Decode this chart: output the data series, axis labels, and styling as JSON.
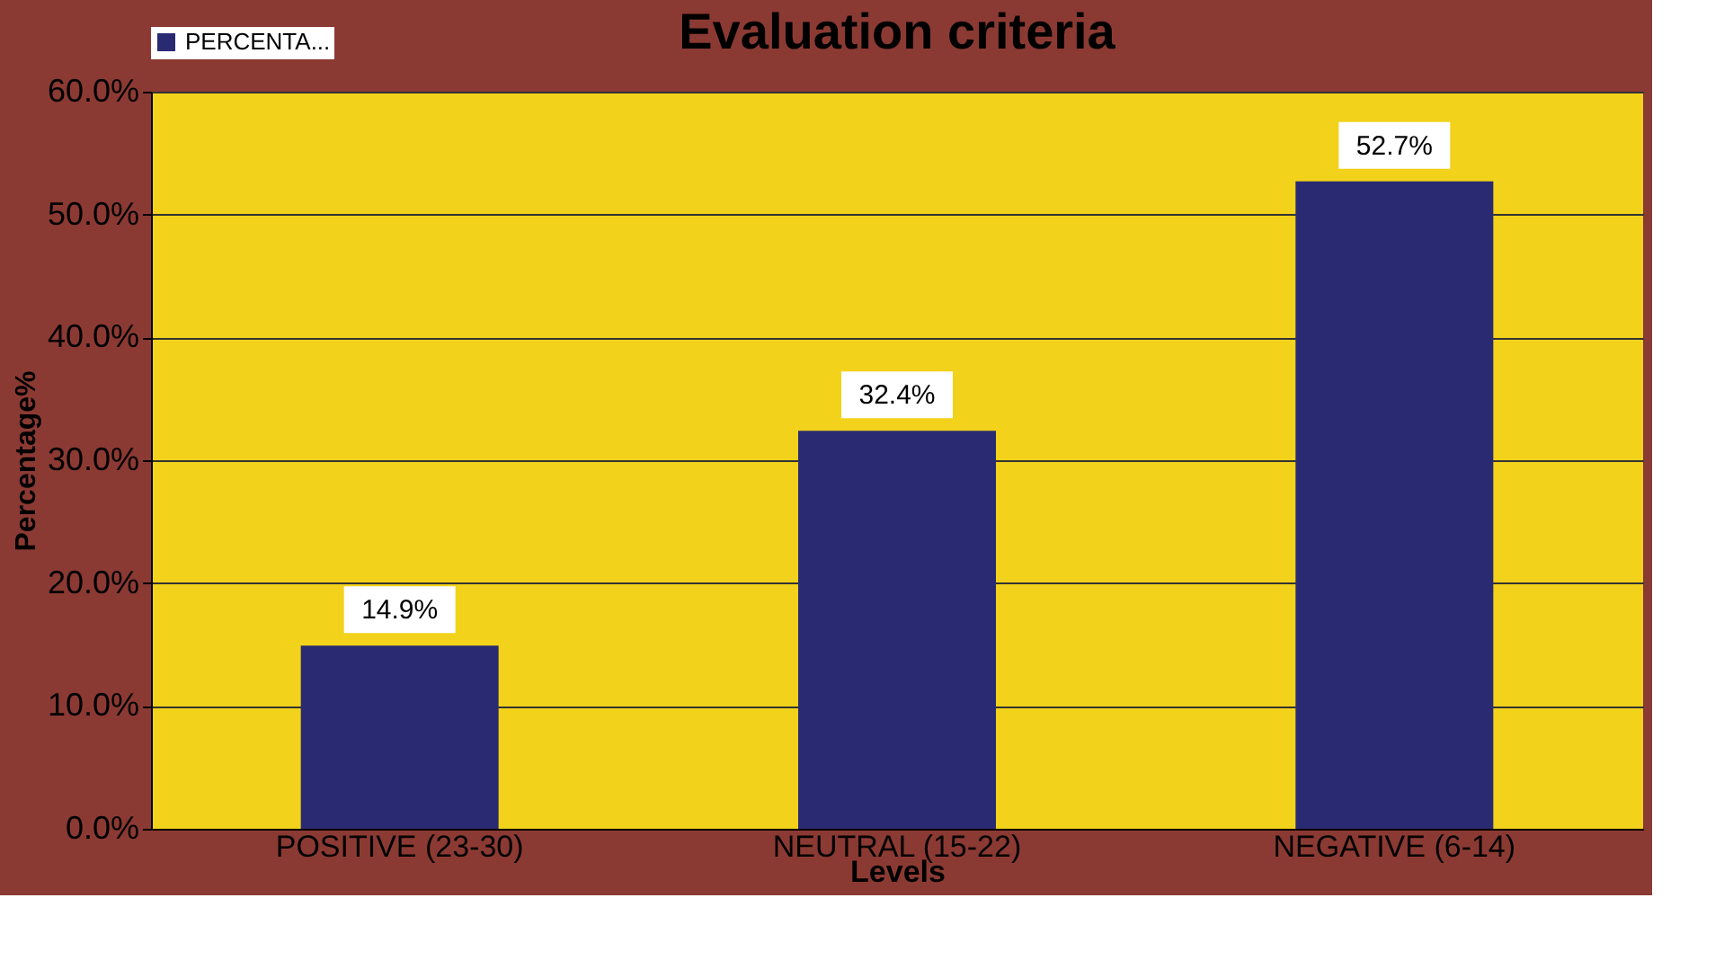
{
  "chart_data": {
    "type": "bar",
    "title": "Evaluation criteria",
    "xlabel": "Levels",
    "ylabel": "Percentage%",
    "categories": [
      "POSITIVE (23-30)",
      "NEUTRAL (15-22)",
      "NEGATIVE (6-14)"
    ],
    "series": [
      {
        "name": "PERCENTA...",
        "color": "#2a2a72",
        "values": [
          14.9,
          32.4,
          52.7
        ],
        "value_labels": [
          "14.9%",
          "32.4%",
          "52.7%"
        ]
      }
    ],
    "ylim": [
      0,
      60
    ],
    "yticks": [
      {
        "value": 0,
        "label": "0.0%"
      },
      {
        "value": 10,
        "label": "10.0%"
      },
      {
        "value": 20,
        "label": "20.0%"
      },
      {
        "value": 30,
        "label": "30.0%"
      },
      {
        "value": 40,
        "label": "40.0%"
      },
      {
        "value": 50,
        "label": "50.0%"
      },
      {
        "value": 60,
        "label": "60.0%"
      }
    ],
    "grid": "y",
    "legend": "top"
  }
}
